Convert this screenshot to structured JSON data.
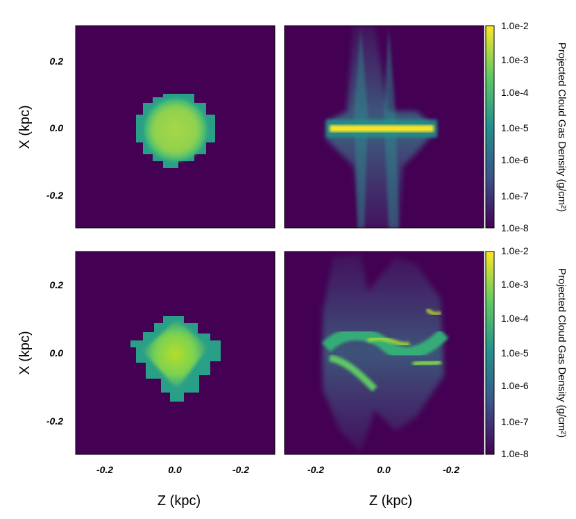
{
  "chart_data": [
    {
      "type": "heatmap",
      "panel": "top-left",
      "ylabel": "X (kpc)",
      "xlabel": "",
      "xlim": [
        -0.3,
        0.3
      ],
      "ylim": [
        -0.3,
        0.3
      ],
      "yticks": [
        "0.2",
        "0.0",
        "-0.2"
      ],
      "xticks": [],
      "structure": "compact square-ish cloud centered at (0,0), radius ~0.1 kpc"
    },
    {
      "type": "heatmap",
      "panel": "top-right",
      "xlim": [
        -0.3,
        0.3
      ],
      "ylim": [
        -0.3,
        0.3
      ],
      "structure": "thin bright horizontal band at X~0 spanning Z -0.15 to 0.15, faint vertical plumes"
    },
    {
      "type": "heatmap",
      "panel": "bottom-left",
      "ylabel": "X (kpc)",
      "xlabel": "Z (kpc)",
      "xlim": [
        -0.3,
        0.3
      ],
      "ylim": [
        -0.3,
        0.3
      ],
      "yticks": [
        "0.2",
        "0.0",
        "-0.2"
      ],
      "xticks": [
        "-0.2",
        "0.0",
        "-0.2"
      ],
      "structure": "compact diamond-shaped cloud centered at (0,0), radius ~0.12 kpc"
    },
    {
      "type": "heatmap",
      "panel": "bottom-right",
      "xlabel": "Z (kpc)",
      "xlim": [
        -0.3,
        0.3
      ],
      "ylim": [
        -0.3,
        0.3
      ],
      "xticks": [
        "-0.2",
        "0.0",
        "-0.2"
      ],
      "structure": "fragmented filaments across Z -0.2 to 0.2 with broad vertical plumes"
    }
  ],
  "colorbar": {
    "label": "Projected Cloud Gas Density  (g/cm²)",
    "ticks": [
      "1.0e-2",
      "1.0e-3",
      "1.0e-4",
      "1.0e-5",
      "1.0e-6",
      "1.0e-7",
      "1.0e-8"
    ],
    "colormap": [
      "#440154",
      "#3b528b",
      "#21908d",
      "#5dc963",
      "#fde725"
    ]
  },
  "labels": {
    "ylabel_top": "X (kpc)",
    "ylabel_bottom": "X (kpc)",
    "xlabel_left": "Z (kpc)",
    "xlabel_right": "Z (kpc)",
    "ytick_top_1": "0.2",
    "ytick_top_2": "0.0",
    "ytick_top_3": "-0.2",
    "ytick_bot_1": "0.2",
    "ytick_bot_2": "0.0",
    "ytick_bot_3": "-0.2",
    "xtick_l_1": "-0.2",
    "xtick_l_2": "0.0",
    "xtick_l_3": "-0.2",
    "xtick_r_1": "-0.2",
    "xtick_r_2": "0.0",
    "xtick_r_3": "-0.2",
    "cb_top_1": "1.0e-2",
    "cb_top_2": "1.0e-3",
    "cb_top_3": "1.0e-4",
    "cb_top_4": "1.0e-5",
    "cb_top_5": "1.0e-6",
    "cb_top_6": "1.0e-7",
    "cb_top_7": "1.0e-8",
    "cb_bot_1": "1.0e-2",
    "cb_bot_2": "1.0e-3",
    "cb_bot_3": "1.0e-4",
    "cb_bot_4": "1.0e-5",
    "cb_bot_5": "1.0e-6",
    "cb_bot_6": "1.0e-7",
    "cb_bot_7": "1.0e-8",
    "cb_label_top": "Projected Cloud Gas Density  (g/cm²)",
    "cb_label_bottom": "Projected Cloud Gas Density  (g/cm²)"
  }
}
